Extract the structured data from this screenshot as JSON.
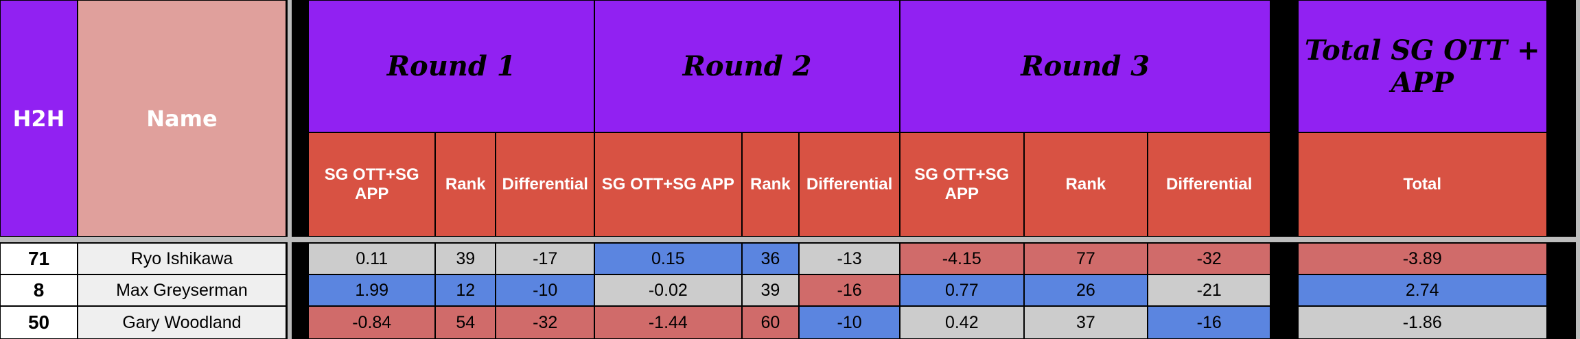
{
  "header": {
    "h2h": "H2H",
    "name": "Name",
    "rounds": [
      "Round 1",
      "Round 2",
      "Round 3",
      "Total SG OTT + APP"
    ],
    "subheaders": [
      "SG OTT+SG APP",
      "Rank",
      "Differential",
      "SG OTT+SG APP",
      "Rank",
      "Differential",
      "SG OTT+SG APP",
      "Rank",
      "Differential",
      "Total"
    ]
  },
  "palette": {
    "gray": "#cccccc",
    "blue": "#5b85e0",
    "red": "#d06b6a"
  },
  "rows": [
    {
      "h2h": "71",
      "name": "Ryo Ishikawa",
      "cells": [
        "0.11",
        "39",
        "-17",
        "0.15",
        "36",
        "-13",
        "-4.15",
        "77",
        "-32",
        "-3.89"
      ],
      "colors": [
        "gray",
        "gray",
        "gray",
        "blue",
        "blue",
        "gray",
        "red",
        "red",
        "red",
        "red"
      ]
    },
    {
      "h2h": "8",
      "name": "Max Greyserman",
      "cells": [
        "1.99",
        "12",
        "-10",
        "-0.02",
        "39",
        "-16",
        "0.77",
        "26",
        "-21",
        "2.74"
      ],
      "colors": [
        "blue",
        "blue",
        "blue",
        "gray",
        "gray",
        "red",
        "blue",
        "blue",
        "gray",
        "blue"
      ]
    },
    {
      "h2h": "50",
      "name": "Gary Woodland",
      "cells": [
        "-0.84",
        "54",
        "-32",
        "-1.44",
        "60",
        "-10",
        "0.42",
        "37",
        "-16",
        "-1.86"
      ],
      "colors": [
        "red",
        "red",
        "red",
        "red",
        "red",
        "blue",
        "gray",
        "gray",
        "blue",
        "gray"
      ]
    }
  ]
}
